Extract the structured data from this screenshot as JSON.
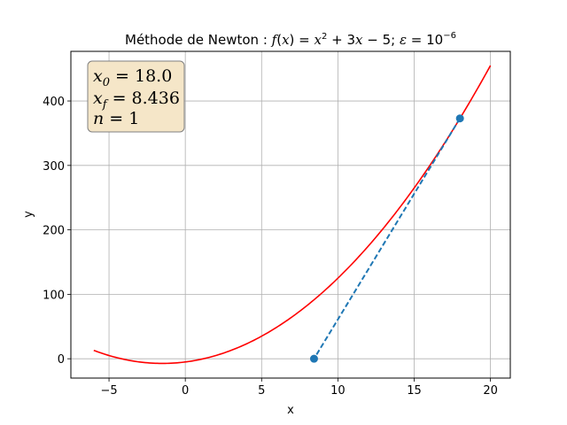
{
  "chart_data": {
    "type": "line",
    "title": "Méthode de Newton : f(x) = x² + 3x − 5; ε = 10⁻⁶",
    "title_parts": {
      "prefix": "Méthode de Newton : ",
      "fx": "f",
      "open": "(",
      "var": "x",
      "close": ") = ",
      "x2": "x",
      "sup2": "2",
      "rest": " + 3",
      "x3": "x",
      "tail": " − 5; ",
      "eps": "ε",
      "eq": " = 10",
      "sup_exp": "−6"
    },
    "xlabel": "x",
    "ylabel": "y",
    "xlim": [
      -7.5,
      21.3
    ],
    "ylim": [
      -30,
      477
    ],
    "xticks": [
      -5,
      0,
      5,
      10,
      15,
      20
    ],
    "xtick_labels": [
      "−5",
      "0",
      "5",
      "10",
      "15",
      "20"
    ],
    "yticks": [
      0,
      100,
      200,
      300,
      400
    ],
    "ytick_labels": [
      "0",
      "100",
      "200",
      "300",
      "400"
    ],
    "grid": true,
    "function": {
      "a": 1,
      "b": 3,
      "c": -5,
      "x_range": [
        -6,
        20
      ],
      "color": "#ff0000"
    },
    "series": [
      {
        "type": "dashed-line-with-markers",
        "x": [
          18.0,
          8.436
        ],
        "y": [
          373,
          0
        ],
        "color": "#1f77b4"
      }
    ],
    "info_box": {
      "lines": [
        {
          "var": "x",
          "sub": "0",
          "value": " = 18.0"
        },
        {
          "var": "x",
          "sub": "f",
          "value": " = 8.436"
        },
        {
          "var": "n",
          "sub": "",
          "value": " = 1"
        }
      ],
      "background": "#f5e6c8",
      "border": "#808080"
    }
  }
}
